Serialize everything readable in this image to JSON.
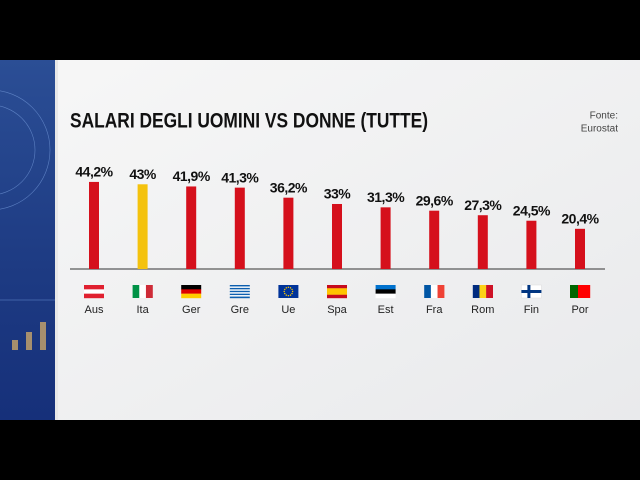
{
  "chart_data": {
    "type": "bar",
    "title": "SALARI DEGLI UOMINI VS DONNE (TUTTE)",
    "source_label": "Fonte:",
    "source": "Eurostat",
    "categories": [
      "Aus",
      "Ita",
      "Ger",
      "Gre",
      "Ue",
      "Spa",
      "Est",
      "Fra",
      "Rom",
      "Fin",
      "Por"
    ],
    "values": [
      44.2,
      43,
      41.9,
      41.3,
      36.2,
      33,
      31.3,
      29.6,
      27.3,
      24.5,
      20.4
    ],
    "value_labels": [
      "44,2%",
      "43%",
      "41,9%",
      "41,3%",
      "36,2%",
      "33%",
      "31,3%",
      "29,6%",
      "27,3%",
      "24,5%",
      "20,4%"
    ],
    "colors": [
      "#d5101c",
      "#f4c20d",
      "#d5101c",
      "#d5101c",
      "#d5101c",
      "#d5101c",
      "#d5101c",
      "#d5101c",
      "#d5101c",
      "#d5101c",
      "#d5101c"
    ]
  }
}
